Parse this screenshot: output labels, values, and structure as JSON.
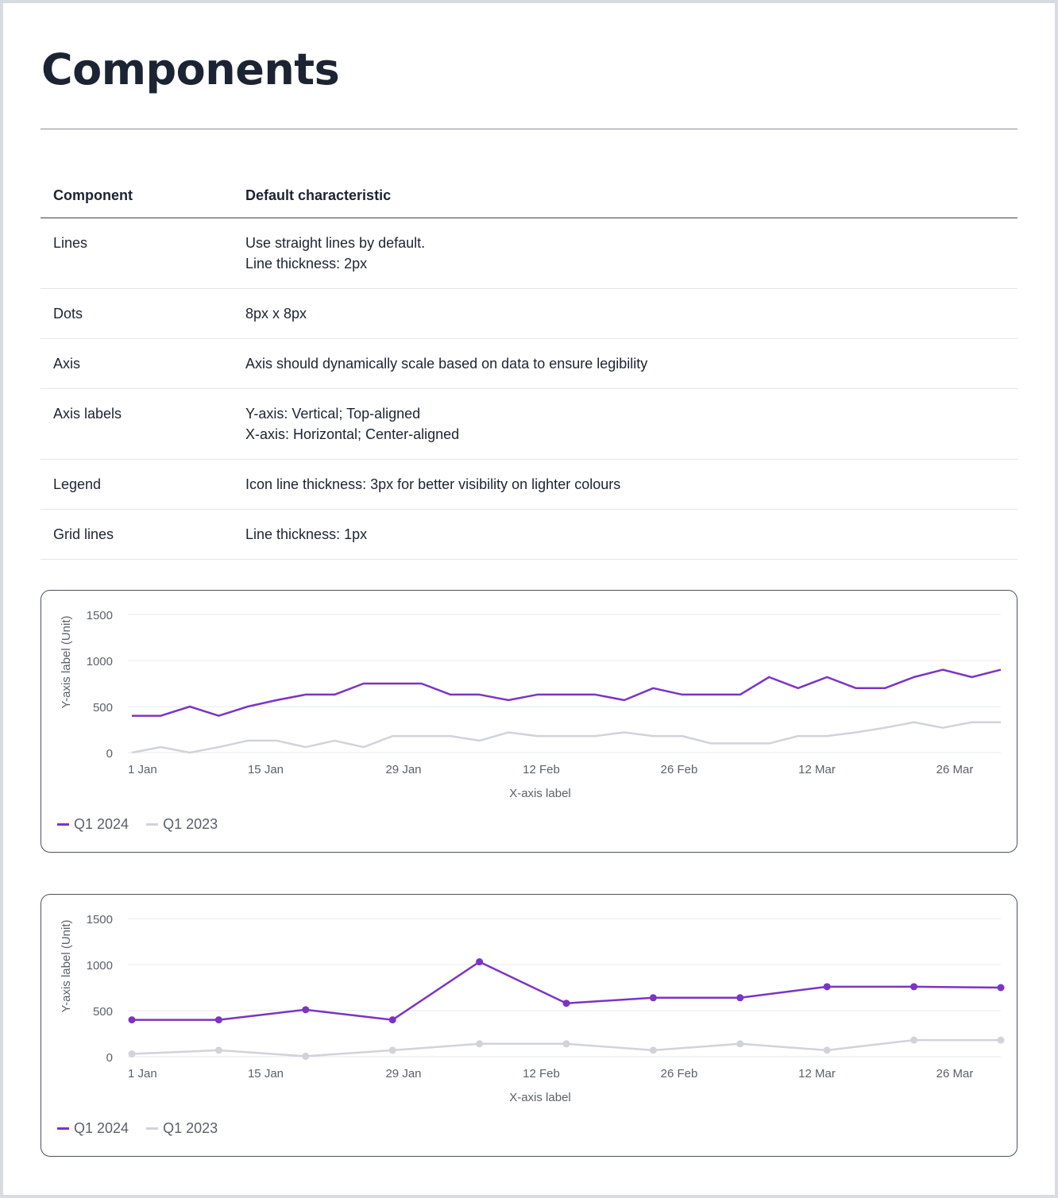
{
  "title": "Components",
  "table": {
    "headers": [
      "Component",
      "Default characteristic"
    ],
    "rows": [
      {
        "name": "Lines",
        "lines": [
          "Use straight lines by default.",
          "Line thickness: 2px"
        ]
      },
      {
        "name": "Dots",
        "lines": [
          "8px x 8px"
        ]
      },
      {
        "name": "Axis",
        "lines": [
          "Axis should dynamically scale based on data to ensure legibility"
        ]
      },
      {
        "name": "Axis labels",
        "lines": [
          "Y-axis: Vertical; Top-aligned",
          "X-axis: Horizontal; Center-aligned"
        ]
      },
      {
        "name": "Legend",
        "lines": [
          "Icon line thickness: 3px for better visibility on lighter colours"
        ]
      },
      {
        "name": "Grid lines",
        "lines": [
          "Line thickness: 1px"
        ]
      }
    ]
  },
  "colors": {
    "q1_2024": "#7b34c4",
    "q1_2023": "#d0d3da"
  },
  "chart_data": [
    {
      "type": "line",
      "dots": false,
      "ylabel": "Y-axis label (Unit)",
      "xlabel": "X-axis label",
      "ylim": [
        0,
        1500
      ],
      "yticks": [
        0,
        500,
        1000,
        1500
      ],
      "xticks": [
        "1 Jan",
        "15 Jan",
        "29 Jan",
        "12 Feb",
        "26 Feb",
        "12 Mar",
        "26 Mar"
      ],
      "grid": true,
      "legend": "bottom-left",
      "series": [
        {
          "name": "Q1 2024",
          "values": [
            400,
            400,
            500,
            400,
            500,
            570,
            630,
            630,
            750,
            750,
            750,
            630,
            630,
            570,
            630,
            630,
            630,
            570,
            700,
            630,
            630,
            630,
            820,
            700,
            820,
            700,
            700,
            820,
            900,
            820,
            900
          ]
        },
        {
          "name": "Q1 2023",
          "values": [
            0,
            60,
            0,
            60,
            130,
            130,
            60,
            130,
            60,
            180,
            180,
            180,
            130,
            220,
            180,
            180,
            180,
            220,
            180,
            180,
            100,
            100,
            100,
            180,
            180,
            220,
            270,
            330,
            270,
            330,
            330
          ]
        }
      ]
    },
    {
      "type": "line",
      "dots": true,
      "ylabel": "Y-axis label (Unit)",
      "xlabel": "X-axis label",
      "ylim": [
        0,
        1500
      ],
      "yticks": [
        0,
        500,
        1000,
        1500
      ],
      "xticks": [
        "1 Jan",
        "15 Jan",
        "29 Jan",
        "12 Feb",
        "26 Feb",
        "12 Mar",
        "26 Mar"
      ],
      "grid": true,
      "legend": "bottom-left",
      "series": [
        {
          "name": "Q1 2024",
          "values": [
            400,
            400,
            510,
            400,
            1030,
            580,
            640,
            640,
            760,
            760,
            750
          ]
        },
        {
          "name": "Q1 2023",
          "values": [
            30,
            70,
            5,
            70,
            140,
            140,
            70,
            140,
            70,
            180,
            180
          ]
        }
      ]
    }
  ]
}
